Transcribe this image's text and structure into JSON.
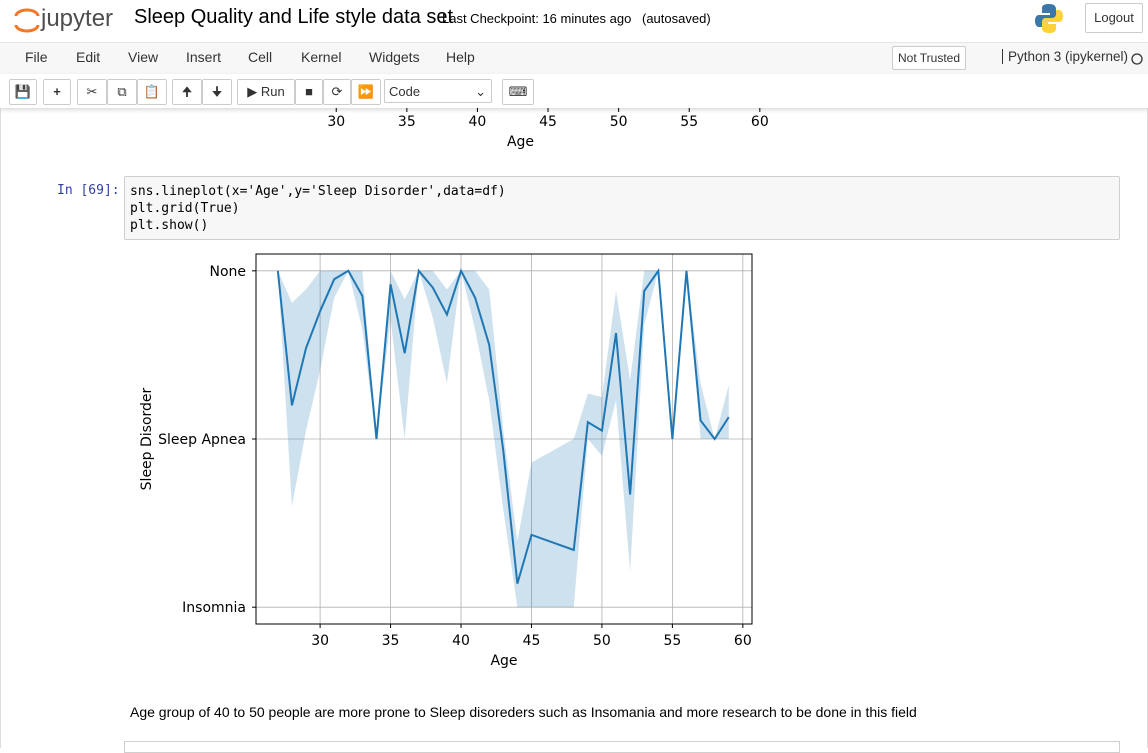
{
  "header": {
    "logo": "jupyter",
    "title": "Sleep Quality and Life style data set",
    "checkpoint": "Last Checkpoint: 16 minutes ago",
    "autosaved": "(autosaved)",
    "logout": "Logout"
  },
  "menu": {
    "items": [
      "File",
      "Edit",
      "View",
      "Insert",
      "Cell",
      "Kernel",
      "Widgets",
      "Help"
    ],
    "trust": "Not Trusted",
    "kernel": "Python 3 (ipykernel)"
  },
  "toolbar": {
    "run": "Run",
    "cell_type": "Code"
  },
  "previous_output": {
    "xlim": [
      25.45,
      60.65
    ],
    "xticks": [
      30,
      35,
      40,
      45,
      50,
      55,
      60
    ],
    "xlabel": "Age"
  },
  "cell": {
    "prompt": "In [69]:",
    "code": [
      "sns.lineplot(x='Age',y='Sleep Disorder',data=df)",
      "plt.grid(True)",
      "plt.show()"
    ]
  },
  "chart_data": {
    "type": "line",
    "xlabel": "Age",
    "ylabel": "Sleep Disorder",
    "grid": true,
    "xlim": [
      25.45,
      60.65
    ],
    "xticks": [
      30,
      35,
      40,
      45,
      50,
      55,
      60
    ],
    "ylim": [
      2.1,
      -0.1
    ],
    "yticks": [
      {
        "value": 0,
        "label": "None"
      },
      {
        "value": 1,
        "label": "Sleep Apnea"
      },
      {
        "value": 2,
        "label": "Insomnia"
      }
    ],
    "x": [
      27,
      28,
      29,
      30,
      31,
      32,
      33,
      34,
      35,
      36,
      37,
      38,
      39,
      40,
      41,
      42,
      43,
      44,
      45,
      48,
      49,
      50,
      51,
      52,
      53,
      54,
      55,
      56,
      57,
      58,
      59
    ],
    "series": [
      {
        "color": "#1f77b4",
        "values": [
          0,
          0.8,
          0.46,
          0.24,
          0.05,
          0,
          0.15,
          1.0,
          0.08,
          0.49,
          0,
          0.1,
          0.26,
          0,
          0.16,
          0.44,
          1.07,
          1.86,
          1.57,
          1.66,
          0.9,
          0.95,
          0.37,
          1.33,
          0.12,
          0,
          1.0,
          0,
          0.89,
          1.0,
          0.87
        ],
        "lower": [
          0,
          0.19,
          0.11,
          0,
          0,
          0,
          0,
          1.0,
          0,
          0.17,
          0,
          0,
          0.11,
          0,
          0,
          0.11,
          0.95,
          1.61,
          1.14,
          1.0,
          0.73,
          0.75,
          0.12,
          0.65,
          0,
          0,
          1.0,
          0,
          0.67,
          1.0,
          0.68
        ],
        "upper": [
          0,
          1.4,
          0.95,
          0.59,
          0.16,
          0,
          0.35,
          1.0,
          0.29,
          1.0,
          0,
          0.28,
          0.67,
          0,
          0.35,
          0.77,
          1.42,
          2.0,
          2.0,
          2.0,
          1.0,
          1.1,
          0.77,
          1.79,
          0.32,
          0,
          1.0,
          0,
          1.0,
          1.0,
          1.0
        ]
      }
    ]
  },
  "markdown": "Age group of 40 to 50 people are more prone to Sleep disoreders such as Insomania and more research to be done in this field"
}
